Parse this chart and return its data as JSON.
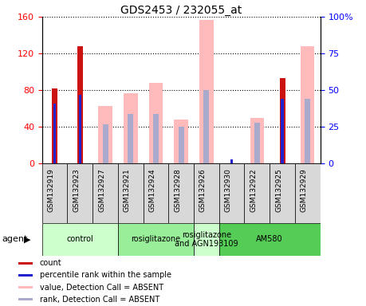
{
  "title": "GDS2453 / 232055_at",
  "samples": [
    "GSM132919",
    "GSM132923",
    "GSM132927",
    "GSM132921",
    "GSM132924",
    "GSM132928",
    "GSM132926",
    "GSM132930",
    "GSM132922",
    "GSM132925",
    "GSM132929"
  ],
  "red_bars": [
    82,
    128,
    0,
    0,
    0,
    0,
    0,
    0,
    0,
    93,
    0
  ],
  "blue_bars_pct": [
    41,
    47,
    0,
    0,
    0,
    0,
    0,
    3,
    0,
    44,
    0
  ],
  "pink_bars": [
    0,
    0,
    63,
    77,
    88,
    48,
    157,
    0,
    50,
    0,
    128
  ],
  "lavender_bars_pct": [
    0,
    0,
    27,
    34,
    34,
    25,
    50,
    0,
    28,
    0,
    44
  ],
  "groups": [
    {
      "label": "control",
      "start": 0,
      "end": 3,
      "color": "#ccffcc"
    },
    {
      "label": "rosiglitazone",
      "start": 3,
      "end": 6,
      "color": "#99ee99"
    },
    {
      "label": "rosiglitazone\nand AGN193109",
      "start": 6,
      "end": 7,
      "color": "#ccffcc"
    },
    {
      "label": "AM580",
      "start": 7,
      "end": 11,
      "color": "#55cc55"
    }
  ],
  "ylim_left": [
    0,
    160
  ],
  "ylim_right": [
    0,
    100
  ],
  "yticks_left": [
    0,
    40,
    80,
    120,
    160
  ],
  "ytick_labels_left": [
    "0",
    "40",
    "80",
    "120",
    "160"
  ],
  "yticks_right": [
    0,
    25,
    50,
    75,
    100
  ],
  "ytick_labels_right": [
    "0",
    "25",
    "50",
    "75",
    "100%"
  ],
  "red_color": "#cc1111",
  "blue_color": "#2222cc",
  "pink_color": "#ffbbbb",
  "lavender_color": "#aaaacc",
  "agent_label": "agent",
  "legend_items": [
    {
      "color": "#cc1111",
      "label": "count"
    },
    {
      "color": "#2222cc",
      "label": "percentile rank within the sample"
    },
    {
      "color": "#ffbbbb",
      "label": "value, Detection Call = ABSENT"
    },
    {
      "color": "#aaaacc",
      "label": "rank, Detection Call = ABSENT"
    }
  ]
}
